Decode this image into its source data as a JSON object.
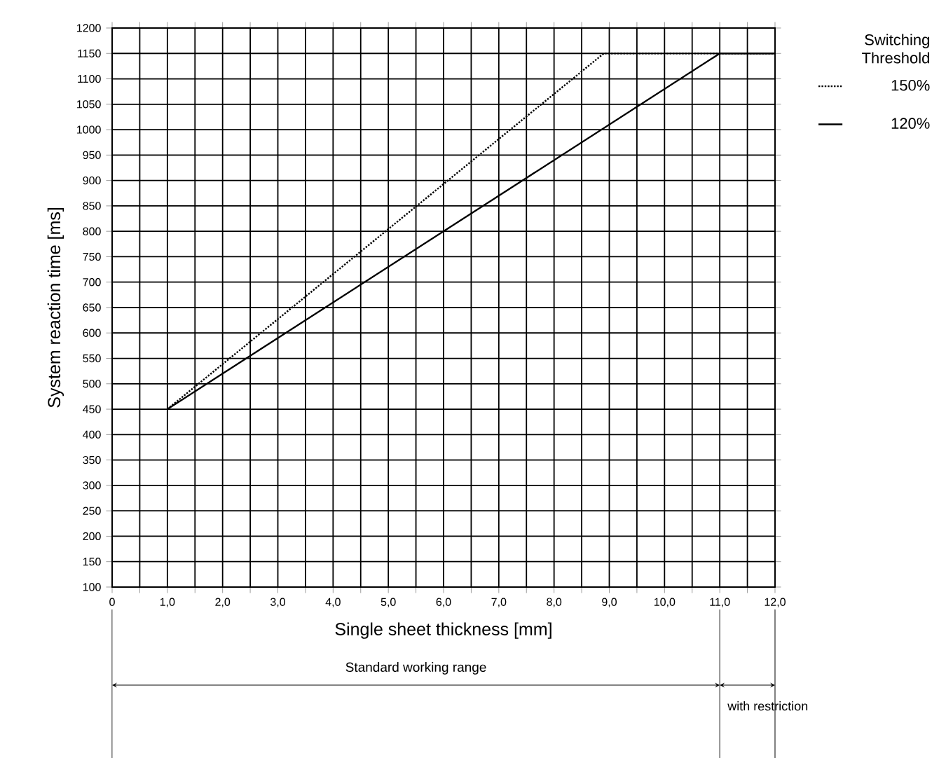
{
  "chart_data": {
    "type": "line",
    "xlabel": "Single sheet thickness [mm]",
    "ylabel": "System reaction time [ms]",
    "legend_title": "Switching Threshold",
    "series": [
      {
        "name": "150%",
        "color": "#000000",
        "line_style": "dotted",
        "x": [
          1,
          8.9,
          12
        ],
        "values": [
          450,
          1150,
          1150
        ]
      },
      {
        "name": "120%",
        "color": "#000000",
        "line_style": "solid",
        "x": [
          1,
          11,
          12
        ],
        "values": [
          450,
          1150,
          1150
        ]
      }
    ],
    "xlim": [
      0,
      12
    ],
    "ylim": [
      100,
      1200
    ],
    "xticks": [
      0,
      {
        "value": 0.5,
        "label": null
      },
      {
        "value": 1,
        "label": "1,0"
      },
      {
        "value": 1.5,
        "label": null
      },
      {
        "value": 2,
        "label": "2,0"
      },
      {
        "value": 2.5,
        "label": null
      },
      {
        "value": 3,
        "label": "3,0"
      },
      {
        "value": 3.5,
        "label": null
      },
      {
        "value": 4,
        "label": "4,0"
      },
      {
        "value": 4.5,
        "label": null
      },
      {
        "value": 5,
        "label": "5,0"
      },
      {
        "value": 5.5,
        "label": null
      },
      {
        "value": 6,
        "label": "6,0"
      },
      {
        "value": 6.5,
        "label": null
      },
      {
        "value": 7,
        "label": "7,0"
      },
      {
        "value": 7.5,
        "label": null
      },
      {
        "value": 8,
        "label": "8,0"
      },
      {
        "value": 8.5,
        "label": null
      },
      {
        "value": 9,
        "label": "9,0"
      },
      {
        "value": 9.5,
        "label": null
      },
      {
        "value": 10,
        "label": "10,0"
      },
      {
        "value": 10.5,
        "label": null
      },
      {
        "value": 11,
        "label": "11,0"
      },
      {
        "value": 11.5,
        "label": null
      },
      {
        "value": 12,
        "label": "12,0"
      }
    ],
    "yticks": [
      100,
      150,
      200,
      250,
      300,
      350,
      400,
      450,
      500,
      550,
      600,
      650,
      700,
      750,
      800,
      850,
      900,
      950,
      1000,
      1050,
      1100,
      1150,
      1200
    ],
    "grid": true,
    "legend": "right",
    "marker": "none",
    "annotations": [
      "Standard working range",
      "with restriction"
    ]
  }
}
